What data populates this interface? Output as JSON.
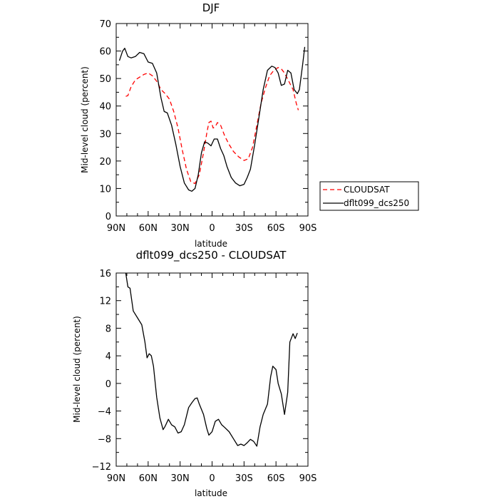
{
  "chart_data": [
    {
      "type": "line",
      "title": "DJF",
      "xlabel": "latitude",
      "ylabel": "Mid-level cloud (percent)",
      "xlim": [
        90,
        -90
      ],
      "ylim": [
        0,
        70
      ],
      "x_ticks": [
        90,
        60,
        30,
        0,
        -30,
        -60,
        -90
      ],
      "x_tick_labels": [
        "90N",
        "60N",
        "30N",
        "0",
        "30S",
        "60S",
        "90S"
      ],
      "y_ticks": [
        0,
        10,
        20,
        30,
        40,
        50,
        60,
        70
      ],
      "y_tick_labels": [
        "0",
        "10",
        "20",
        "30",
        "40",
        "50",
        "60",
        "70"
      ],
      "grid": false,
      "legend": "outside-right",
      "series": [
        {
          "name": "CLOUDSAT",
          "color": "#ff0000",
          "dash": "dashed",
          "x": [
            81,
            79,
            76,
            72,
            68,
            64,
            60,
            56,
            52,
            48,
            44,
            40,
            36,
            32,
            28,
            24,
            20,
            16,
            12,
            8,
            5,
            3,
            1,
            -1,
            -3,
            -5,
            -8,
            -12,
            -16,
            -20,
            -25,
            -30,
            -34,
            -38,
            -42,
            -46,
            -50,
            -54,
            -58,
            -62,
            -65,
            -68,
            -72,
            -76,
            -79,
            -81
          ],
          "y": [
            43.5,
            43.8,
            47,
            49.5,
            50.5,
            51.5,
            52,
            51,
            49,
            46,
            44.5,
            42.5,
            38,
            32,
            24,
            17,
            12.5,
            11.8,
            15,
            23,
            30,
            34,
            34.5,
            32,
            32.5,
            34,
            33,
            29,
            26,
            23.5,
            21.5,
            20.2,
            20.8,
            25,
            33,
            41,
            46.5,
            51,
            53,
            54,
            53.5,
            52,
            49,
            46,
            41,
            38.5
          ]
        },
        {
          "name": "dflt099_dcs250",
          "color": "#000000",
          "dash": "solid",
          "x": [
            87,
            84,
            82,
            79,
            76,
            72,
            68,
            64,
            60,
            56,
            52,
            48,
            45,
            42,
            38,
            34,
            30,
            26,
            22,
            19,
            16,
            13,
            10,
            7,
            4,
            1,
            -2,
            -5,
            -8,
            -11,
            -14,
            -18,
            -22,
            -26,
            -30,
            -33,
            -36,
            -40,
            -44,
            -48,
            -52,
            -56,
            -59,
            -62,
            -65,
            -68,
            -71,
            -74,
            -77,
            -80,
            -82,
            -85,
            -87
          ],
          "y": [
            56.5,
            60,
            61,
            58,
            57.5,
            58,
            59.5,
            59,
            56,
            55.5,
            52,
            43,
            38,
            37.5,
            33,
            26,
            18,
            12,
            9.5,
            9,
            10,
            15,
            23,
            27,
            26.5,
            25.5,
            28,
            28,
            24.5,
            22,
            18,
            14,
            12,
            11,
            11.5,
            14,
            17,
            26,
            36,
            46,
            53,
            54.5,
            54,
            52,
            47.5,
            48,
            53,
            52,
            46,
            44.5,
            46,
            55,
            61.5
          ]
        }
      ]
    },
    {
      "type": "line",
      "title": "dflt099_dcs250 - CLOUDSAT",
      "xlabel": "latitude",
      "ylabel": "Mid-level cloud (percent)",
      "xlim": [
        90,
        -90
      ],
      "ylim": [
        -12,
        16
      ],
      "x_ticks": [
        90,
        60,
        30,
        0,
        -30,
        -60,
        -90
      ],
      "x_tick_labels": [
        "90N",
        "60N",
        "30N",
        "0",
        "30S",
        "60S",
        "90S"
      ],
      "y_ticks": [
        -12,
        -8,
        -4,
        0,
        4,
        8,
        12,
        16
      ],
      "y_tick_labels": [
        "−12",
        "−8",
        "−4",
        "0",
        "4",
        "8",
        "12",
        "16"
      ],
      "grid": false,
      "legend": "none",
      "series": [
        {
          "color": "#000000",
          "dash": "solid",
          "x": [
            81,
            79,
            77,
            74,
            70,
            66,
            63,
            61,
            59,
            57,
            55,
            52,
            49,
            46,
            44,
            41,
            38,
            35,
            32,
            29,
            26,
            22,
            19,
            16,
            14,
            12,
            8,
            5,
            3,
            0,
            -3,
            -6,
            -9,
            -12,
            -16,
            -20,
            -24,
            -27,
            -30,
            -33,
            -36,
            -39,
            -42,
            -45,
            -48,
            -52,
            -55,
            -57,
            -60,
            -62,
            -65,
            -68,
            -71,
            -73,
            -76,
            -78,
            -80
          ],
          "y": [
            16,
            14,
            13.8,
            10.5,
            9.5,
            8.5,
            6,
            3.7,
            4.3,
            4,
            2.5,
            -2,
            -5,
            -6.7,
            -6.2,
            -5.2,
            -6,
            -6.3,
            -7.2,
            -7,
            -6,
            -3.5,
            -2.8,
            -2.2,
            -2.1,
            -3,
            -4.5,
            -6.5,
            -7.5,
            -7,
            -5.5,
            -5.2,
            -6,
            -6.4,
            -7,
            -8,
            -9,
            -8.8,
            -9,
            -8.6,
            -8.1,
            -8.4,
            -9.1,
            -6.3,
            -4.5,
            -3,
            1,
            2.5,
            2,
            0,
            -1.5,
            -4.5,
            -1.3,
            6,
            7.2,
            6.5,
            7.3
          ]
        }
      ]
    }
  ]
}
